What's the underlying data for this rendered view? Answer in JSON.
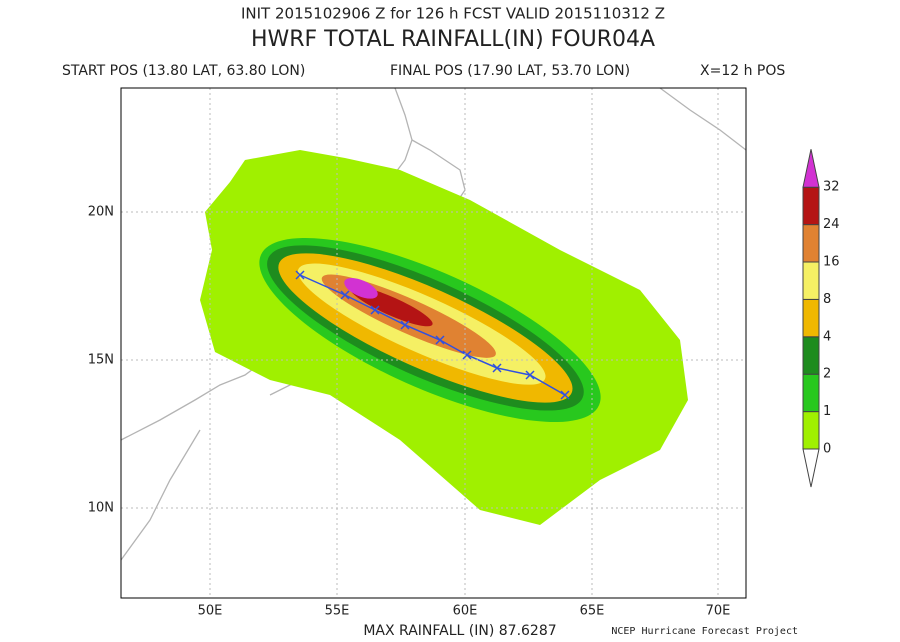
{
  "header": {
    "init_line": "INIT 2015102906 Z for 126 h FCST VALID 2015110312 Z",
    "title": "HWRF TOTAL RAINFALL(IN) FOUR04A",
    "start_pos": "START POS (13.80 LAT, 63.80 LON)",
    "final_pos": "FINAL POS (17.90 LAT, 53.70 LON)",
    "track_note": "X=12 h POS"
  },
  "map": {
    "x_labels": [
      "50E",
      "55E",
      "60E",
      "65E",
      "70E"
    ],
    "y_labels": [
      "10N",
      "15N",
      "20N"
    ]
  },
  "colorbar": {
    "levels": [
      0,
      1,
      2,
      4,
      8,
      16,
      24,
      32
    ],
    "colors": [
      "#a0f000",
      "#28c81e",
      "#1e8c1e",
      "#f0b800",
      "#f5f064",
      "#e08232",
      "#b41414",
      "#d232d2"
    ],
    "below_color": "#ffffff"
  },
  "footer": {
    "max_rainfall": "MAX RAINFALL (IN) 87.6287",
    "credit": "NCEP Hurricane Forecast Project"
  }
}
